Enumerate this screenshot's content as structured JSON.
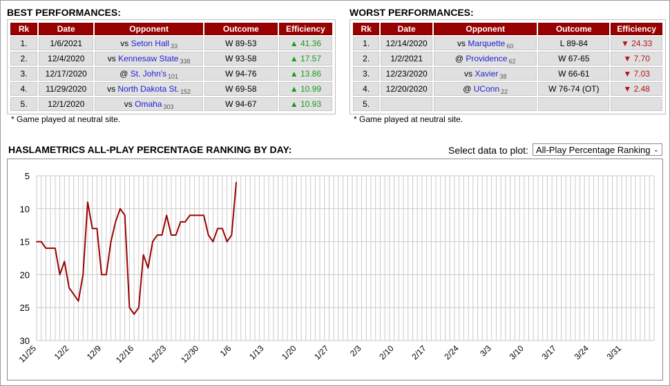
{
  "best": {
    "title": "BEST PERFORMANCES:",
    "headers": [
      "Rk",
      "Date",
      "Opponent",
      "Outcome",
      "Efficiency"
    ],
    "rows": [
      {
        "rk": "1.",
        "date": "1/6/2021",
        "prefix": "vs",
        "team": "Seton Hall",
        "team_rank": "33",
        "outcome": "W 89-53",
        "arrow": "▲",
        "eff": "41.36"
      },
      {
        "rk": "2.",
        "date": "12/4/2020",
        "prefix": "vs",
        "team": "Kennesaw State",
        "team_rank": "338",
        "outcome": "W 93-58",
        "arrow": "▲",
        "eff": "17.57"
      },
      {
        "rk": "3.",
        "date": "12/17/2020",
        "prefix": "@",
        "team": "St. John's",
        "team_rank": "101",
        "outcome": "W 94-76",
        "arrow": "▲",
        "eff": "13.86"
      },
      {
        "rk": "4.",
        "date": "11/29/2020",
        "prefix": "vs",
        "team": "North Dakota St.",
        "team_rank": "152",
        "outcome": "W 69-58",
        "arrow": "▲",
        "eff": "10.99"
      },
      {
        "rk": "5.",
        "date": "12/1/2020",
        "prefix": "vs",
        "team": "Omaha",
        "team_rank": "303",
        "outcome": "W 94-67",
        "arrow": "▲",
        "eff": "10.93"
      }
    ],
    "note": "* Game played at neutral site."
  },
  "worst": {
    "title": "WORST PERFORMANCES:",
    "headers": [
      "Rk",
      "Date",
      "Opponent",
      "Outcome",
      "Efficiency"
    ],
    "rows": [
      {
        "rk": "1.",
        "date": "12/14/2020",
        "prefix": "vs",
        "team": "Marquette",
        "team_rank": "60",
        "outcome": "L 89-84",
        "arrow": "▼",
        "eff": "24.33"
      },
      {
        "rk": "2.",
        "date": "1/2/2021",
        "prefix": "@",
        "team": "Providence",
        "team_rank": "62",
        "outcome": "W 67-65",
        "arrow": "▼",
        "eff": "7.70"
      },
      {
        "rk": "3.",
        "date": "12/23/2020",
        "prefix": "vs",
        "team": "Xavier",
        "team_rank": "38",
        "outcome": "W 66-61",
        "arrow": "▼",
        "eff": "7.03"
      },
      {
        "rk": "4.",
        "date": "12/20/2020",
        "prefix": "@",
        "team": "UConn",
        "team_rank": "22",
        "outcome": "W 76-74 (OT)",
        "arrow": "▼",
        "eff": "2.48"
      },
      {
        "rk": "5.",
        "date": "",
        "prefix": "",
        "team": "",
        "team_rank": "",
        "outcome": "",
        "arrow": "",
        "eff": ""
      }
    ],
    "note": "* Game played at neutral site."
  },
  "selector": {
    "label": "Select data to plot:",
    "selected": "All-Play Percentage Ranking",
    "arrow_icon": "chevron-down-icon"
  },
  "colors": {
    "header_bg": "#990000",
    "line": "#990000",
    "team_link": "#1f1fd6",
    "positive": "#1a9a1a",
    "negative": "#b01818"
  },
  "chart_data": {
    "type": "line",
    "title": "HASLAMETRICS ALL-PLAY PERCENTAGE RANKING BY DAY:",
    "xlabel": "",
    "ylabel": "",
    "y_inverted": true,
    "ylim": [
      5,
      30
    ],
    "yticks": [
      5,
      10,
      15,
      20,
      25,
      30
    ],
    "x_start": "2020-11-25",
    "x_end": "2021-04-07",
    "xtick_labels": [
      "11/25",
      "12/2",
      "12/9",
      "12/16",
      "12/23",
      "12/30",
      "1/6",
      "1/13",
      "1/20",
      "1/27",
      "2/3",
      "2/10",
      "2/17",
      "2/24",
      "3/3",
      "3/10",
      "3/17",
      "3/24",
      "3/31"
    ],
    "grid": true,
    "series": [
      {
        "color": "#990000",
        "x": [
          "2020-11-25",
          "2020-11-26",
          "2020-11-27",
          "2020-11-28",
          "2020-11-29",
          "2020-11-30",
          "2020-12-01",
          "2020-12-02",
          "2020-12-03",
          "2020-12-04",
          "2020-12-05",
          "2020-12-06",
          "2020-12-07",
          "2020-12-08",
          "2020-12-09",
          "2020-12-10",
          "2020-12-11",
          "2020-12-12",
          "2020-12-13",
          "2020-12-14",
          "2020-12-15",
          "2020-12-16",
          "2020-12-17",
          "2020-12-18",
          "2020-12-19",
          "2020-12-20",
          "2020-12-21",
          "2020-12-22",
          "2020-12-23",
          "2020-12-24",
          "2020-12-25",
          "2020-12-26",
          "2020-12-27",
          "2020-12-28",
          "2020-12-29",
          "2020-12-30",
          "2020-12-31",
          "2021-01-01",
          "2021-01-02",
          "2021-01-03",
          "2021-01-04",
          "2021-01-05",
          "2021-01-06",
          "2021-01-07"
        ],
        "y": [
          15,
          15,
          16,
          16,
          16,
          20,
          18,
          22,
          23,
          24,
          20,
          9,
          13,
          13,
          20,
          20,
          15,
          12,
          10,
          11,
          25,
          26,
          25,
          17,
          19,
          15,
          14,
          14,
          11,
          14,
          14,
          12,
          12,
          11,
          11,
          11,
          11,
          14,
          15,
          13,
          13,
          15,
          14,
          6
        ]
      }
    ]
  }
}
